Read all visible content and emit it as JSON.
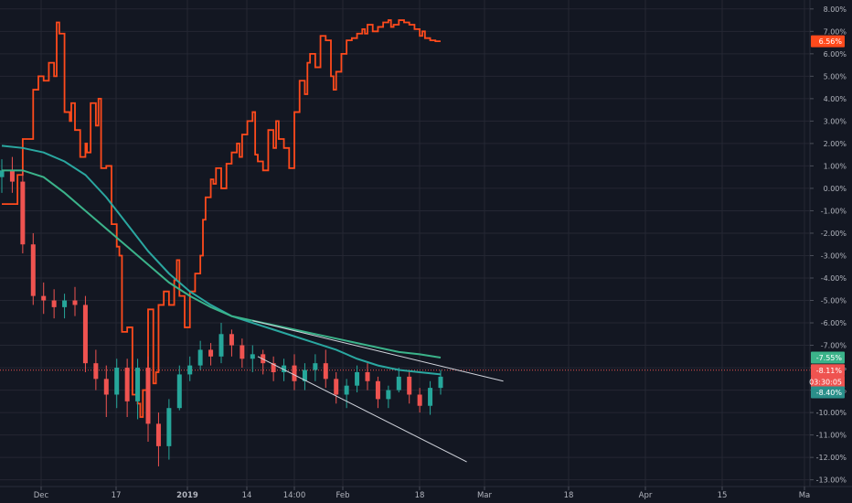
{
  "chart_data": {
    "type": "line",
    "title": "",
    "xlabel": "",
    "ylabel": "",
    "x_ticks": [
      "Dec",
      "17",
      "2019",
      "14",
      "14:00",
      "Feb",
      "18",
      "Mar",
      "18",
      "Apr",
      "15",
      "Ma"
    ],
    "x_ticks_bold": [
      "2019"
    ],
    "y_ticks": [
      "8.00%",
      "7.00%",
      "6.00%",
      "5.00%",
      "4.00%",
      "3.00%",
      "2.00%",
      "1.00%",
      "0.00%",
      "-1.00%",
      "-2.00%",
      "-3.00%",
      "-4.00%",
      "-5.00%",
      "-6.00%",
      "-7.00%",
      "-8.00%",
      "-9.00%",
      "-10.00%",
      "-11.00%",
      "-12.00%",
      "-13.00%"
    ],
    "ylim": [
      -13.3,
      8.4
    ],
    "grid": true,
    "colors": {
      "background": "#131722",
      "grid": "#242733",
      "axis_text": "#b2b5be",
      "orange_series": "#ff4a1c",
      "candle_up": "#26a69a",
      "candle_down": "#ef5350",
      "ma_teal": "#2aa7a0",
      "ma_green": "#3bb38a",
      "trendline": "#d1d4dc",
      "price_line": "#ef5350"
    },
    "badges": [
      {
        "label": "6.56%",
        "value": 6.56,
        "color": "#ff4a1c"
      },
      {
        "label": "-7.55%",
        "value": -7.55,
        "color": "#3bb38a"
      },
      {
        "label": "-8.11%",
        "value": -8.11,
        "color": "#ef5350"
      },
      {
        "label": "03:30:05",
        "value": -8.62,
        "color": "#ef5350"
      },
      {
        "label": "-8.40%",
        "value": -9.1,
        "color": "#2a8f8a"
      }
    ],
    "series": [
      {
        "kind": "step",
        "color": "#ff4a1c",
        "x": [
          0,
          3,
          4,
          6,
          7,
          8,
          9,
          10,
          10.5,
          11,
          12,
          13,
          13.3,
          14,
          15,
          16,
          16.3,
          17,
          18,
          18.5,
          19,
          20,
          21,
          22,
          22.5,
          23,
          24,
          25,
          26,
          26.5,
          27,
          28,
          29,
          29.5,
          30,
          31,
          32,
          33,
          33.5,
          34,
          35,
          36,
          37,
          38,
          38.5,
          39,
          40,
          40.5,
          41,
          42,
          43,
          44,
          45,
          45.5,
          46,
          47,
          48,
          48.5,
          49,
          50,
          51,
          52,
          52.5,
          53,
          54,
          55,
          56,
          57,
          58,
          58.5,
          59,
          60,
          61,
          62,
          63,
          63.5,
          64,
          65,
          66,
          67,
          68,
          69,
          69.5,
          70,
          71,
          72,
          73,
          74,
          74.5,
          75,
          76,
          77,
          78,
          79,
          80,
          80.5,
          81,
          82,
          83,
          84
        ],
        "values": [
          -0.7,
          0.6,
          2.2,
          4.4,
          5.0,
          4.8,
          5.6,
          5.0,
          7.4,
          6.9,
          3.4,
          3.0,
          3.8,
          2.6,
          1.4,
          2.0,
          1.6,
          3.8,
          2.8,
          4.0,
          0.9,
          1.0,
          -1.6,
          -2.6,
          -3.0,
          -6.4,
          -6.2,
          -9.2,
          -9.6,
          -10.2,
          -9.0,
          -5.4,
          -8.7,
          -8.2,
          -5.2,
          -4.6,
          -5.2,
          -4.1,
          -3.2,
          -4.8,
          -6.2,
          -4.6,
          -3.8,
          -3.0,
          -1.4,
          -0.4,
          0.4,
          0.2,
          0.9,
          0.0,
          1.1,
          1.6,
          2.0,
          1.4,
          2.4,
          3.0,
          3.4,
          1.5,
          1.2,
          0.8,
          2.6,
          1.8,
          3.0,
          2.2,
          1.8,
          0.9,
          3.4,
          4.8,
          4.2,
          5.6,
          6.0,
          5.4,
          6.8,
          6.6,
          5.0,
          4.4,
          5.2,
          6.0,
          6.6,
          6.7,
          6.9,
          7.1,
          6.9,
          7.3,
          7.0,
          7.2,
          7.4,
          7.5,
          7.2,
          7.3,
          7.5,
          7.4,
          7.3,
          7.1,
          6.8,
          7.0,
          6.7,
          6.6,
          6.56,
          6.56
        ]
      },
      {
        "kind": "candles",
        "up_color": "#26a69a",
        "down_color": "#ef5350",
        "x": [
          0,
          2,
          4,
          6,
          8,
          10,
          12,
          14,
          16,
          18,
          20,
          22,
          24,
          26,
          28,
          30,
          32,
          34,
          36,
          38,
          40,
          42,
          44,
          46,
          48,
          50,
          52,
          54,
          56,
          58,
          60,
          62,
          64,
          66,
          68,
          70,
          72,
          74,
          76,
          78,
          80,
          82,
          84
        ],
        "open": [
          0.5,
          0.8,
          0.3,
          -2.5,
          -4.8,
          -5.0,
          -5.3,
          -5.0,
          -5.2,
          -7.8,
          -8.5,
          -9.2,
          -8.0,
          -9.5,
          -8.0,
          -10.5,
          -11.5,
          -9.8,
          -8.3,
          -7.9,
          -7.2,
          -7.5,
          -6.5,
          -7.0,
          -7.6,
          -7.4,
          -7.8,
          -8.2,
          -7.9,
          -8.6,
          -8.1,
          -7.8,
          -8.5,
          -9.2,
          -8.8,
          -8.2,
          -8.6,
          -9.4,
          -9.0,
          -8.4,
          -9.2,
          -9.7,
          -8.9
        ],
        "close": [
          0.8,
          0.3,
          -2.5,
          -4.8,
          -5.0,
          -5.3,
          -5.0,
          -5.2,
          -7.8,
          -8.5,
          -9.2,
          -8.0,
          -9.5,
          -8.0,
          -10.5,
          -11.5,
          -9.8,
          -8.3,
          -7.9,
          -7.2,
          -7.5,
          -6.5,
          -7.0,
          -7.6,
          -7.4,
          -7.8,
          -8.2,
          -7.9,
          -8.6,
          -8.1,
          -7.8,
          -8.5,
          -9.2,
          -8.8,
          -8.2,
          -8.6,
          -9.4,
          -9.0,
          -8.4,
          -9.2,
          -9.7,
          -8.9,
          -8.4
        ],
        "high": [
          1.3,
          1.4,
          0.8,
          -2.0,
          -4.2,
          -4.5,
          -4.7,
          -4.4,
          -4.8,
          -7.2,
          -7.9,
          -7.6,
          -7.6,
          -7.6,
          -7.5,
          -10.0,
          -9.4,
          -7.9,
          -7.5,
          -6.8,
          -6.9,
          -6.0,
          -6.3,
          -6.7,
          -7.0,
          -7.2,
          -7.5,
          -7.6,
          -7.4,
          -7.8,
          -7.4,
          -7.2,
          -8.2,
          -8.5,
          -7.9,
          -7.8,
          -8.4,
          -8.8,
          -8.0,
          -8.1,
          -8.9,
          -8.6,
          -8.1
        ],
        "low": [
          -0.2,
          -0.2,
          -2.9,
          -5.2,
          -5.6,
          -5.8,
          -5.8,
          -5.7,
          -8.2,
          -9.0,
          -10.2,
          -9.8,
          -10.2,
          -10.3,
          -11.3,
          -12.4,
          -12.1,
          -9.9,
          -8.6,
          -8.1,
          -7.9,
          -7.8,
          -7.5,
          -8.0,
          -8.2,
          -8.3,
          -8.6,
          -8.6,
          -9.0,
          -9.0,
          -8.6,
          -8.9,
          -9.6,
          -9.8,
          -9.1,
          -9.0,
          -9.8,
          -9.8,
          -9.1,
          -9.6,
          -10.0,
          -10.1,
          -9.2
        ]
      },
      {
        "kind": "line",
        "color": "#2aa7a0",
        "x": [
          0,
          4,
          8,
          12,
          16,
          20,
          24,
          28,
          32,
          36,
          40,
          44,
          48,
          52,
          56,
          60,
          64,
          68,
          72,
          76,
          80,
          84
        ],
        "values": [
          1.9,
          1.8,
          1.6,
          1.2,
          0.6,
          -0.4,
          -1.6,
          -2.8,
          -3.8,
          -4.6,
          -5.2,
          -5.7,
          -6.0,
          -6.3,
          -6.6,
          -6.9,
          -7.2,
          -7.6,
          -7.9,
          -8.1,
          -8.2,
          -8.3
        ]
      },
      {
        "kind": "line",
        "color": "#3bb38a",
        "x": [
          0,
          4,
          8,
          12,
          16,
          20,
          24,
          28,
          32,
          36,
          40,
          44,
          48,
          52,
          56,
          60,
          64,
          68,
          72,
          76,
          80,
          84
        ],
        "values": [
          0.8,
          0.8,
          0.5,
          -0.2,
          -1.0,
          -1.8,
          -2.6,
          -3.4,
          -4.2,
          -4.8,
          -5.3,
          -5.7,
          -5.9,
          -6.1,
          -6.3,
          -6.5,
          -6.7,
          -6.9,
          -7.1,
          -7.3,
          -7.4,
          -7.55
        ]
      },
      {
        "kind": "trendline",
        "color": "#d1d4dc",
        "x": [
          48,
          96
        ],
        "values": [
          -5.9,
          -8.6
        ]
      },
      {
        "kind": "trendline",
        "color": "#d1d4dc",
        "x": [
          49,
          89
        ],
        "values": [
          -7.5,
          -12.2
        ]
      }
    ]
  }
}
